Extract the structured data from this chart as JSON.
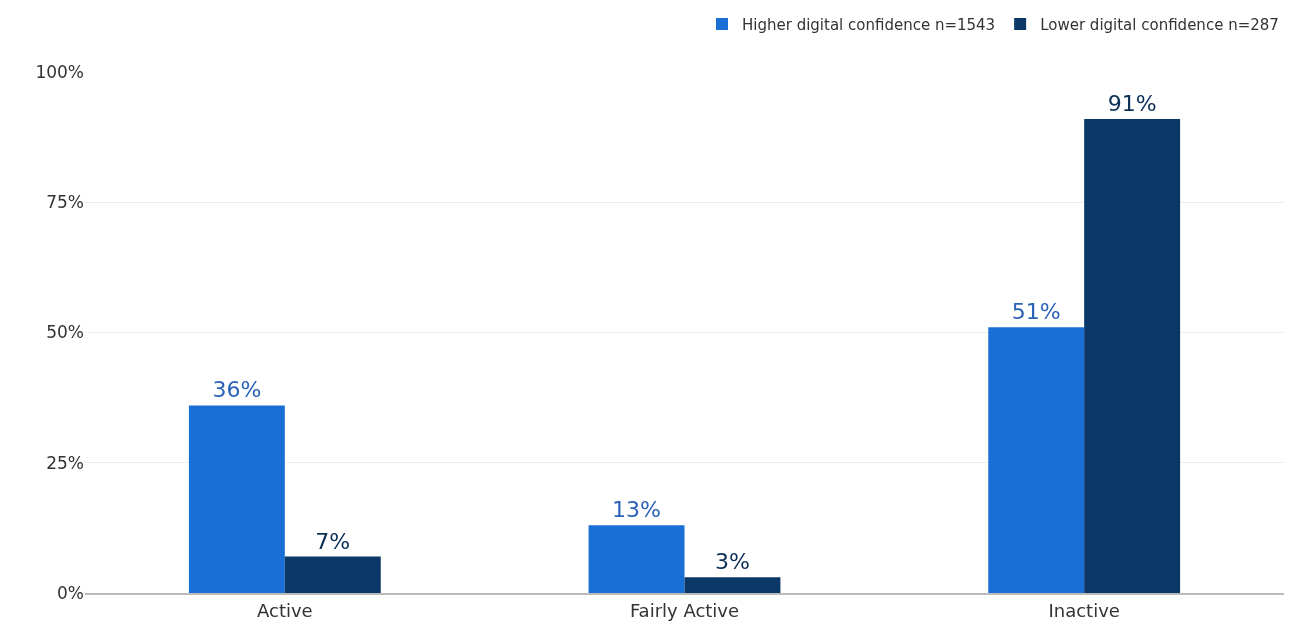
{
  "chart_data": {
    "type": "bar",
    "categories": [
      "Active",
      "Fairly Active",
      "Inactive"
    ],
    "series": [
      {
        "name": "Higher digital confidence n=1543",
        "color": "#1a6fd6",
        "values": [
          36,
          13,
          51
        ],
        "value_labels": [
          "36%",
          "13%",
          "51%"
        ]
      },
      {
        "name": "Lower digital confidence n=287",
        "color": "#0b3866",
        "values": [
          7,
          3,
          91
        ],
        "value_labels": [
          "7%",
          "3%",
          "91%"
        ]
      }
    ],
    "ylim": [
      0,
      100
    ],
    "yticks": [
      {
        "value": 0,
        "label": "0%"
      },
      {
        "value": 25,
        "label": "25%"
      },
      {
        "value": 50,
        "label": "50%"
      },
      {
        "value": 75,
        "label": "75%"
      },
      {
        "value": 100,
        "label": "100%"
      }
    ],
    "grid": "y",
    "legend": "top right"
  }
}
